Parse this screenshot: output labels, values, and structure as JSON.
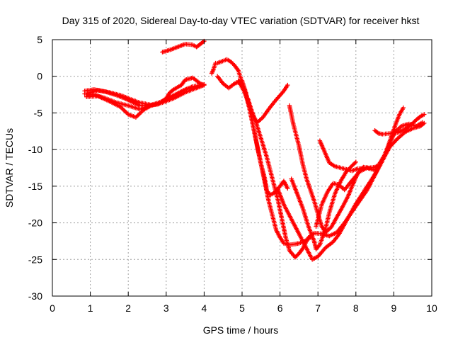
{
  "chart_data": {
    "type": "scatter",
    "title": "Day 315 of 2020, Sidereal Day-to-day VTEC variation (SDTVAR) for receiver hkst",
    "xlabel": "GPS time / hours",
    "ylabel": "SDTVAR / TECUs",
    "xlim": [
      0,
      10
    ],
    "ylim": [
      -30,
      5
    ],
    "xticks": [
      "0",
      "1",
      "2",
      "3",
      "4",
      "5",
      "6",
      "7",
      "8",
      "9",
      "10"
    ],
    "yticks": [
      "5",
      "0",
      "-5",
      "-10",
      "-15",
      "-20",
      "-25",
      "-30"
    ],
    "grid": true,
    "marker": "+",
    "color": "#ff0000",
    "series": [
      {
        "points": [
          [
            0.85,
            -2.0
          ],
          [
            1.1,
            -1.8
          ],
          [
            1.4,
            -2.1
          ],
          [
            1.7,
            -2.6
          ],
          [
            1.9,
            -3.0
          ],
          [
            2.1,
            -3.5
          ],
          [
            2.3,
            -4.0
          ],
          [
            2.5,
            -4.0
          ],
          [
            2.8,
            -3.8
          ],
          [
            3.0,
            -3.0
          ],
          [
            3.1,
            -2.2
          ],
          [
            3.2,
            -1.8
          ],
          [
            3.4,
            -1.2
          ],
          [
            3.5,
            -0.5
          ],
          [
            3.7,
            -0.2
          ],
          [
            3.9,
            -1.0
          ],
          [
            4.0,
            -1.2
          ]
        ]
      },
      {
        "points": [
          [
            0.85,
            -2.4
          ],
          [
            1.1,
            -2.5
          ],
          [
            1.4,
            -3.0
          ],
          [
            1.7,
            -3.6
          ],
          [
            2.0,
            -4.0
          ],
          [
            2.3,
            -4.5
          ],
          [
            2.6,
            -4.0
          ],
          [
            2.9,
            -3.4
          ],
          [
            3.2,
            -2.6
          ],
          [
            3.5,
            -1.8
          ],
          [
            3.7,
            -1.4
          ],
          [
            3.9,
            -1.2
          ],
          [
            4.0,
            -1.1
          ]
        ]
      },
      {
        "points": [
          [
            0.9,
            -2.8
          ],
          [
            1.2,
            -2.7
          ],
          [
            1.5,
            -3.4
          ],
          [
            1.8,
            -4.2
          ],
          [
            2.0,
            -5.2
          ],
          [
            2.2,
            -5.6
          ],
          [
            2.4,
            -4.6
          ],
          [
            2.6,
            -4.0
          ],
          [
            2.9,
            -3.6
          ],
          [
            3.2,
            -3.0
          ],
          [
            3.5,
            -2.2
          ],
          [
            3.8,
            -1.6
          ],
          [
            4.0,
            -1.2
          ]
        ]
      },
      {
        "points": [
          [
            0.95,
            -2.3
          ],
          [
            1.2,
            -1.9
          ],
          [
            1.5,
            -2.2
          ],
          [
            1.8,
            -2.6
          ],
          [
            2.0,
            -3.0
          ],
          [
            2.3,
            -3.6
          ],
          [
            2.6,
            -3.9
          ],
          [
            2.9,
            -3.5
          ],
          [
            3.1,
            -2.8
          ]
        ]
      },
      {
        "points": [
          [
            2.9,
            3.3
          ],
          [
            3.1,
            3.6
          ],
          [
            3.3,
            4.0
          ],
          [
            3.5,
            4.4
          ],
          [
            3.7,
            4.3
          ],
          [
            3.8,
            4.0
          ],
          [
            3.9,
            4.4
          ],
          [
            4.0,
            4.8
          ]
        ]
      },
      {
        "points": [
          [
            4.2,
            0.4
          ],
          [
            4.25,
            1.0
          ],
          [
            4.3,
            1.8
          ]
        ]
      },
      {
        "points": [
          [
            4.35,
            1.8
          ],
          [
            4.45,
            2.0
          ],
          [
            4.6,
            2.3
          ],
          [
            4.7,
            2.0
          ],
          [
            4.8,
            1.5
          ],
          [
            4.9,
            0.8
          ],
          [
            5.0,
            -0.8
          ],
          [
            5.1,
            -2.5
          ],
          [
            5.2,
            -4.5
          ],
          [
            5.3,
            -7.0
          ],
          [
            5.4,
            -9.6
          ],
          [
            5.5,
            -12.0
          ],
          [
            5.6,
            -14.0
          ],
          [
            5.65,
            -15.6
          ],
          [
            5.75,
            -16.2
          ],
          [
            5.85,
            -15.9
          ],
          [
            6.0,
            -15.0
          ],
          [
            6.1,
            -14.3
          ],
          [
            6.2,
            -15.3
          ]
        ]
      },
      {
        "points": [
          [
            4.35,
            0.0
          ],
          [
            4.5,
            -1.0
          ],
          [
            4.65,
            -1.6
          ],
          [
            4.8,
            -1.0
          ],
          [
            5.0,
            -0.6
          ],
          [
            5.1,
            -2.2
          ],
          [
            5.2,
            -4.5
          ],
          [
            5.3,
            -7.0
          ],
          [
            5.4,
            -9.5
          ],
          [
            5.5,
            -12.0
          ],
          [
            5.6,
            -14.5
          ],
          [
            5.7,
            -17.0
          ],
          [
            5.8,
            -19.0
          ],
          [
            5.9,
            -21.0
          ],
          [
            6.0,
            -22.0
          ],
          [
            6.1,
            -22.8
          ],
          [
            6.25,
            -23.0
          ],
          [
            6.4,
            -22.9
          ],
          [
            6.5,
            -22.8
          ],
          [
            6.65,
            -22.5
          ],
          [
            6.8,
            -22.0
          ]
        ]
      },
      {
        "points": [
          [
            4.9,
            -0.6
          ],
          [
            5.05,
            -2.0
          ],
          [
            5.2,
            -4.0
          ],
          [
            5.35,
            -6.0
          ],
          [
            5.5,
            -8.5
          ],
          [
            5.65,
            -11.0
          ],
          [
            5.8,
            -14.0
          ],
          [
            5.95,
            -17.0
          ],
          [
            6.05,
            -19.5
          ],
          [
            6.15,
            -22.0
          ],
          [
            6.25,
            -23.8
          ],
          [
            6.4,
            -24.7
          ],
          [
            6.5,
            -24.2
          ],
          [
            6.6,
            -23.5
          ],
          [
            6.75,
            -22.0
          ],
          [
            6.9,
            -21.4
          ],
          [
            7.1,
            -21.5
          ],
          [
            7.3,
            -21.8
          ],
          [
            7.5,
            -21.3
          ],
          [
            7.7,
            -20.0
          ],
          [
            7.9,
            -18.5
          ],
          [
            8.1,
            -17.0
          ],
          [
            8.3,
            -15.5
          ],
          [
            8.45,
            -14.0
          ],
          [
            8.6,
            -12.5
          ],
          [
            8.75,
            -11.0
          ],
          [
            8.9,
            -9.0
          ],
          [
            9.05,
            -7.5
          ],
          [
            9.2,
            -6.8
          ],
          [
            9.4,
            -6.5
          ],
          [
            9.6,
            -6.8
          ],
          [
            9.75,
            -6.3
          ]
        ]
      },
      {
        "points": [
          [
            5.15,
            -3.0
          ],
          [
            5.3,
            -5.5
          ],
          [
            5.4,
            -6.3
          ],
          [
            5.55,
            -5.6
          ],
          [
            5.7,
            -4.5
          ],
          [
            5.85,
            -3.5
          ],
          [
            6.0,
            -2.6
          ],
          [
            6.1,
            -2.0
          ],
          [
            6.2,
            -1.2
          ]
        ]
      },
      {
        "points": [
          [
            6.25,
            -4.0
          ],
          [
            6.35,
            -6.5
          ],
          [
            6.5,
            -9.5
          ],
          [
            6.6,
            -12.0
          ],
          [
            6.7,
            -14.0
          ],
          [
            6.8,
            -15.5
          ],
          [
            6.9,
            -17.0
          ],
          [
            7.0,
            -18.8
          ],
          [
            7.1,
            -20.5
          ],
          [
            7.2,
            -21.3
          ],
          [
            7.35,
            -20.6
          ],
          [
            7.5,
            -19.2
          ],
          [
            7.65,
            -17.8
          ],
          [
            7.8,
            -16.3
          ],
          [
            7.9,
            -15.0
          ],
          [
            8.0,
            -13.8
          ],
          [
            8.1,
            -12.8
          ],
          [
            8.2,
            -12.4
          ],
          [
            8.35,
            -12.5
          ],
          [
            8.5,
            -12.4
          ],
          [
            8.6,
            -12.1
          ],
          [
            8.75,
            -10.8
          ],
          [
            8.85,
            -9.5
          ],
          [
            8.95,
            -8.0
          ],
          [
            9.05,
            -6.5
          ],
          [
            9.15,
            -5.2
          ],
          [
            9.25,
            -4.3
          ]
        ]
      },
      {
        "points": [
          [
            6.3,
            -14.0
          ],
          [
            6.45,
            -16.0
          ],
          [
            6.6,
            -18.0
          ],
          [
            6.75,
            -20.5
          ],
          [
            6.9,
            -22.5
          ],
          [
            6.95,
            -23.6
          ],
          [
            7.05,
            -23.0
          ],
          [
            7.2,
            -20.8
          ],
          [
            7.3,
            -18.6
          ],
          [
            7.45,
            -16.0
          ],
          [
            7.6,
            -14.3
          ],
          [
            7.75,
            -13.0
          ],
          [
            7.9,
            -12.2
          ],
          [
            8.0,
            -11.7
          ]
        ]
      },
      {
        "points": [
          [
            5.95,
            -15.5
          ],
          [
            6.1,
            -17.5
          ],
          [
            6.3,
            -19.5
          ],
          [
            6.5,
            -21.5
          ],
          [
            6.7,
            -23.5
          ],
          [
            6.85,
            -25.0
          ],
          [
            7.0,
            -24.6
          ],
          [
            7.2,
            -23.4
          ],
          [
            7.4,
            -22.6
          ],
          [
            7.55,
            -21.6
          ],
          [
            7.7,
            -20.2
          ],
          [
            7.85,
            -18.8
          ],
          [
            8.0,
            -17.4
          ],
          [
            8.15,
            -16.2
          ],
          [
            8.3,
            -15.0
          ],
          [
            8.45,
            -13.8
          ],
          [
            8.6,
            -12.5
          ],
          [
            8.75,
            -11.0
          ],
          [
            8.9,
            -9.6
          ],
          [
            9.1,
            -8.5
          ],
          [
            9.3,
            -7.6
          ],
          [
            9.5,
            -7.1
          ],
          [
            9.7,
            -6.8
          ],
          [
            9.8,
            -6.4
          ]
        ]
      },
      {
        "points": [
          [
            7.05,
            -8.8
          ],
          [
            7.15,
            -10.0
          ],
          [
            7.3,
            -11.8
          ],
          [
            7.45,
            -12.3
          ],
          [
            7.6,
            -12.5
          ],
          [
            7.75,
            -12.7
          ],
          [
            7.9,
            -12.9
          ],
          [
            8.05,
            -12.6
          ],
          [
            8.2,
            -12.6
          ]
        ]
      },
      {
        "points": [
          [
            6.95,
            -20.5
          ],
          [
            7.1,
            -17.5
          ],
          [
            7.25,
            -15.8
          ],
          [
            7.4,
            -14.6
          ],
          [
            7.55,
            -14.8
          ],
          [
            7.7,
            -15.5
          ],
          [
            7.9,
            -14.2
          ],
          [
            8.1,
            -13.0
          ],
          [
            8.3,
            -12.5
          ],
          [
            8.5,
            -12.8
          ],
          [
            8.6,
            -12.3
          ]
        ]
      },
      {
        "points": [
          [
            8.5,
            -7.4
          ],
          [
            8.6,
            -7.8
          ],
          [
            8.7,
            -7.9
          ],
          [
            8.9,
            -7.8
          ],
          [
            9.1,
            -7.7
          ],
          [
            9.3,
            -7.2
          ],
          [
            9.5,
            -6.4
          ],
          [
            9.6,
            -5.9
          ],
          [
            9.7,
            -5.5
          ],
          [
            9.8,
            -5.2
          ]
        ]
      }
    ]
  }
}
